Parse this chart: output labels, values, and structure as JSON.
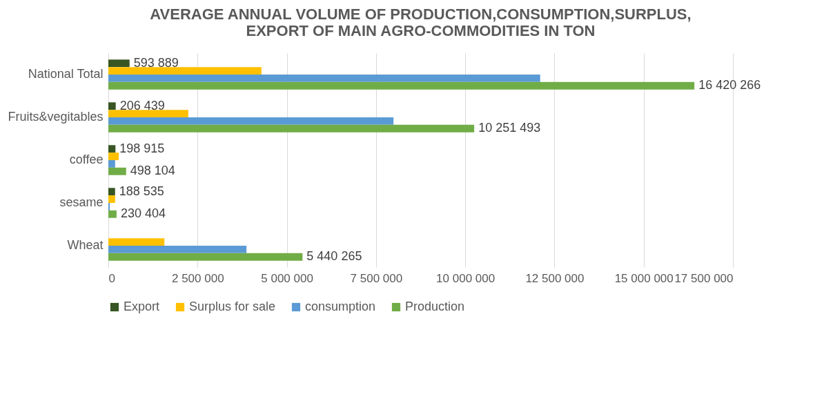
{
  "chart_data": {
    "type": "bar",
    "orientation": "horizontal",
    "title": "AVERAGE ANNUAL VOLUME OF PRODUCTION,CONSUMPTION,SURPLUS, EXPORT OF MAIN AGRO-COMMODITIES IN TON",
    "categories": [
      "National Total",
      "Fruits&vegitables",
      "coffee",
      "sesame",
      "Wheat"
    ],
    "xlim": [
      0,
      17500000
    ],
    "xticks": [
      {
        "value": 0,
        "label": "0"
      },
      {
        "value": 2500000,
        "label": "2 500 000"
      },
      {
        "value": 5000000,
        "label": "5 000 000"
      },
      {
        "value": 7500000,
        "label": "7 500 000"
      },
      {
        "value": 10000000,
        "label": "10 000 000"
      },
      {
        "value": 12500000,
        "label": "12 500 000"
      },
      {
        "value": 15000000,
        "label": "15 000 000"
      },
      {
        "value": 17500000,
        "label": "17 500 000"
      }
    ],
    "grid": "x",
    "legend": "bottom",
    "series": [
      {
        "name": "Export",
        "color": "#375623",
        "values": [
          593889,
          206439,
          198915,
          188535,
          null
        ],
        "value_labels": [
          "593 889",
          "206 439",
          "198 915",
          "188 535",
          null
        ]
      },
      {
        "name": "Surplus for sale",
        "color": "#ffc000",
        "values": [
          4290000,
          2240000,
          290000,
          190000,
          1570000
        ]
      },
      {
        "name": "consumption",
        "color": "#5b9bd5",
        "values": [
          12100000,
          7990000,
          190000,
          40000,
          3870000
        ]
      },
      {
        "name": "Production",
        "color": "#70ad47",
        "values": [
          16420266,
          10251493,
          498104,
          230404,
          5440265
        ],
        "value_labels": [
          "16 420 266",
          "10 251 493",
          "498 104",
          "230 404",
          "5 440 265"
        ]
      }
    ]
  }
}
